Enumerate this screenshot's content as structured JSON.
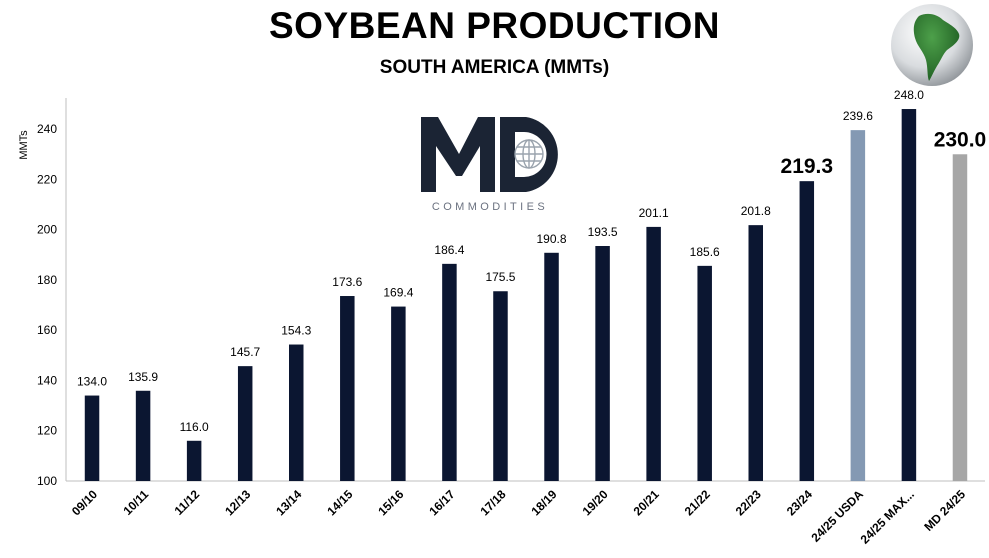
{
  "chart_data": {
    "type": "bar",
    "title": "SOYBEAN PRODUCTION",
    "subtitle": "SOUTH AMERICA (MMTs)",
    "ylabel": "MMTs",
    "xlabel": "",
    "ylim": [
      100,
      250
    ],
    "yticks": [
      "100",
      "120",
      "140",
      "160",
      "180",
      "200",
      "220",
      "240"
    ],
    "grid": false,
    "categories": [
      "09/10",
      "10/11",
      "11/12",
      "12/13",
      "13/14",
      "14/15",
      "15/16",
      "16/17",
      "17/18",
      "18/19",
      "19/20",
      "20/21",
      "21/22",
      "22/23",
      "23/24",
      "24/25 USDA",
      "24/25 MAX...",
      "MD 24/25"
    ],
    "values": [
      134.0,
      135.9,
      116.0,
      145.7,
      154.3,
      173.6,
      169.4,
      186.4,
      175.5,
      190.8,
      193.5,
      201.1,
      185.6,
      201.8,
      219.3,
      239.6,
      248.0,
      230.0
    ],
    "labels": [
      "134.0",
      "135.9",
      "116.0",
      "145.7",
      "154.3",
      "173.6",
      "169.4",
      "186.4",
      "175.5",
      "190.8",
      "193.5",
      "201.1",
      "185.6",
      "201.8",
      "219.3",
      "239.6",
      "248.0",
      "230.0"
    ],
    "highlighted_labels": [
      "219.3",
      "230.0"
    ],
    "colors": {
      "default": "#0b1631",
      "24/25 USDA": "#8499b3",
      "MD 24/25": "#a6a6a6",
      "axis": "#bfbfbf"
    }
  },
  "logo": {
    "text": "COMMODITIES",
    "icon": "md-commodities-logo",
    "color": "#1b2434"
  },
  "globe": {
    "icon": "south-america-globe-icon"
  }
}
